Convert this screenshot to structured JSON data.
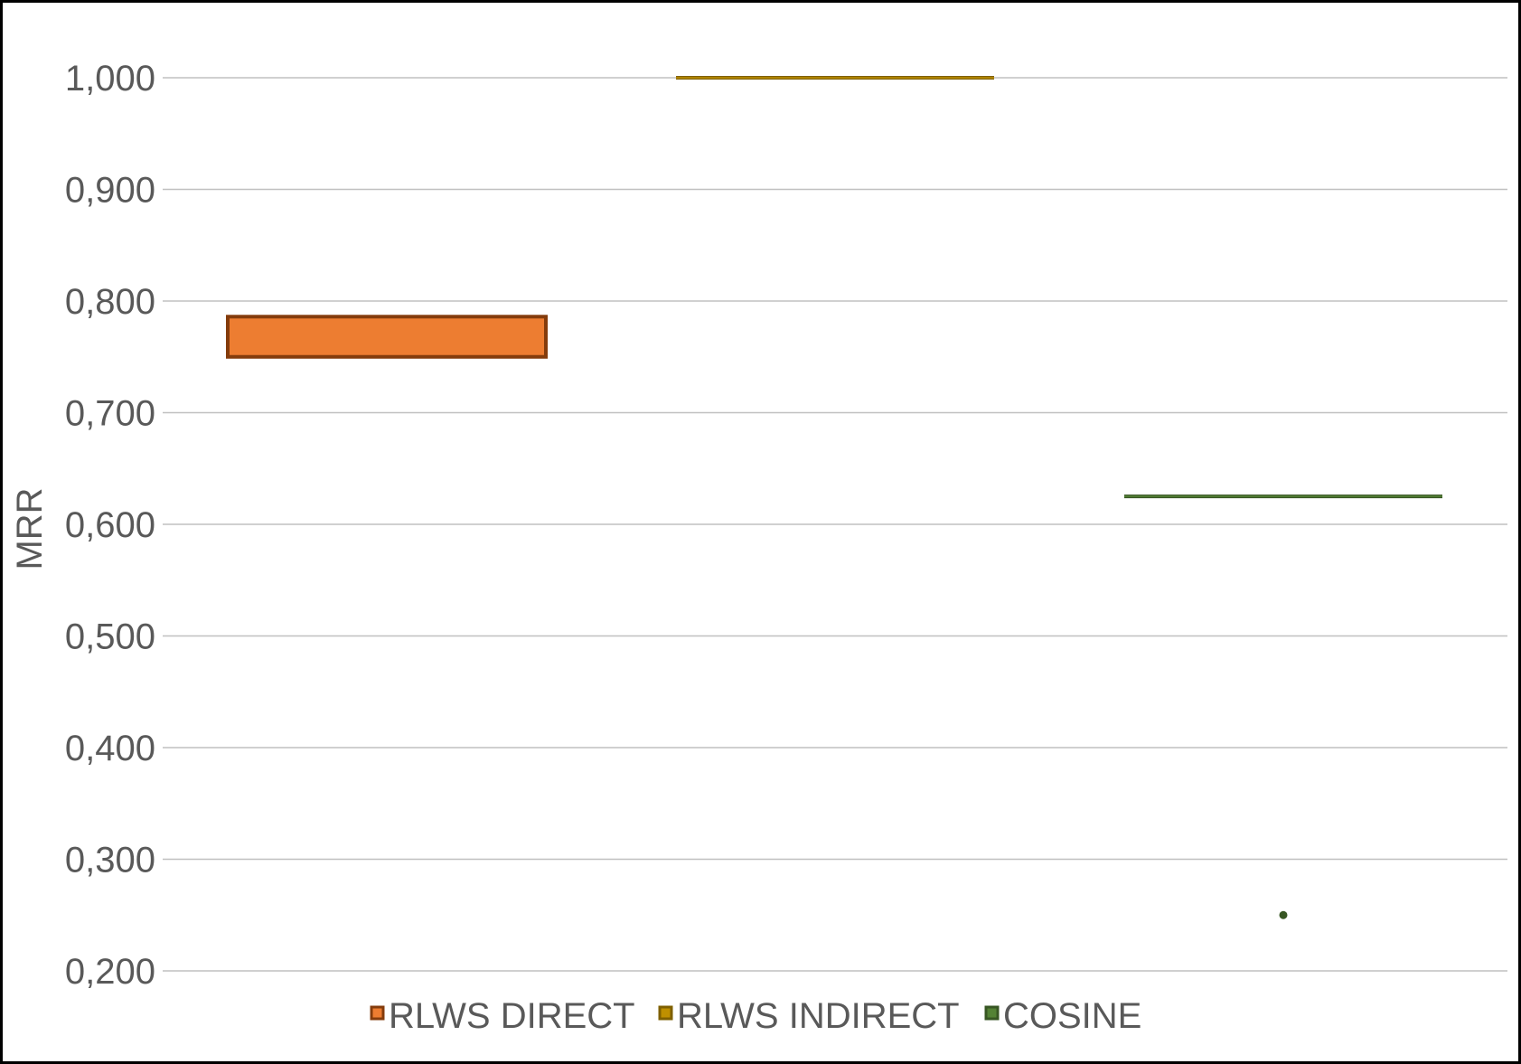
{
  "chart_data": {
    "type": "box",
    "ylabel": "MRR",
    "ylim": [
      0.2,
      1.0
    ],
    "y_ticks": [
      1.0,
      0.9,
      0.8,
      0.7,
      0.6,
      0.5,
      0.4,
      0.3,
      0.2
    ],
    "y_tick_labels": [
      "1,000",
      "0,900",
      "0,800",
      "0,700",
      "0,600",
      "0,500",
      "0,400",
      "0,300",
      "0,200"
    ],
    "grid": true,
    "legend_position": "bottom",
    "series": [
      {
        "name": "RLWS DIRECT",
        "color": "#ED7D31",
        "edge_color": "#843C0C",
        "q1": 0.75,
        "median": 0.75,
        "q3": 0.786,
        "min": 0.75,
        "max": 0.786,
        "outliers": []
      },
      {
        "name": "RLWS INDIRECT",
        "color": "#BF9000",
        "edge_color": "#7F6000",
        "q1": 1.0,
        "median": 1.0,
        "q3": 1.0,
        "min": 1.0,
        "max": 1.0,
        "outliers": []
      },
      {
        "name": "COSINE",
        "color": "#548235",
        "edge_color": "#375623",
        "q1": 0.625,
        "median": 0.625,
        "q3": 0.625,
        "min": 0.625,
        "max": 0.625,
        "outliers": [
          0.25
        ]
      }
    ]
  }
}
